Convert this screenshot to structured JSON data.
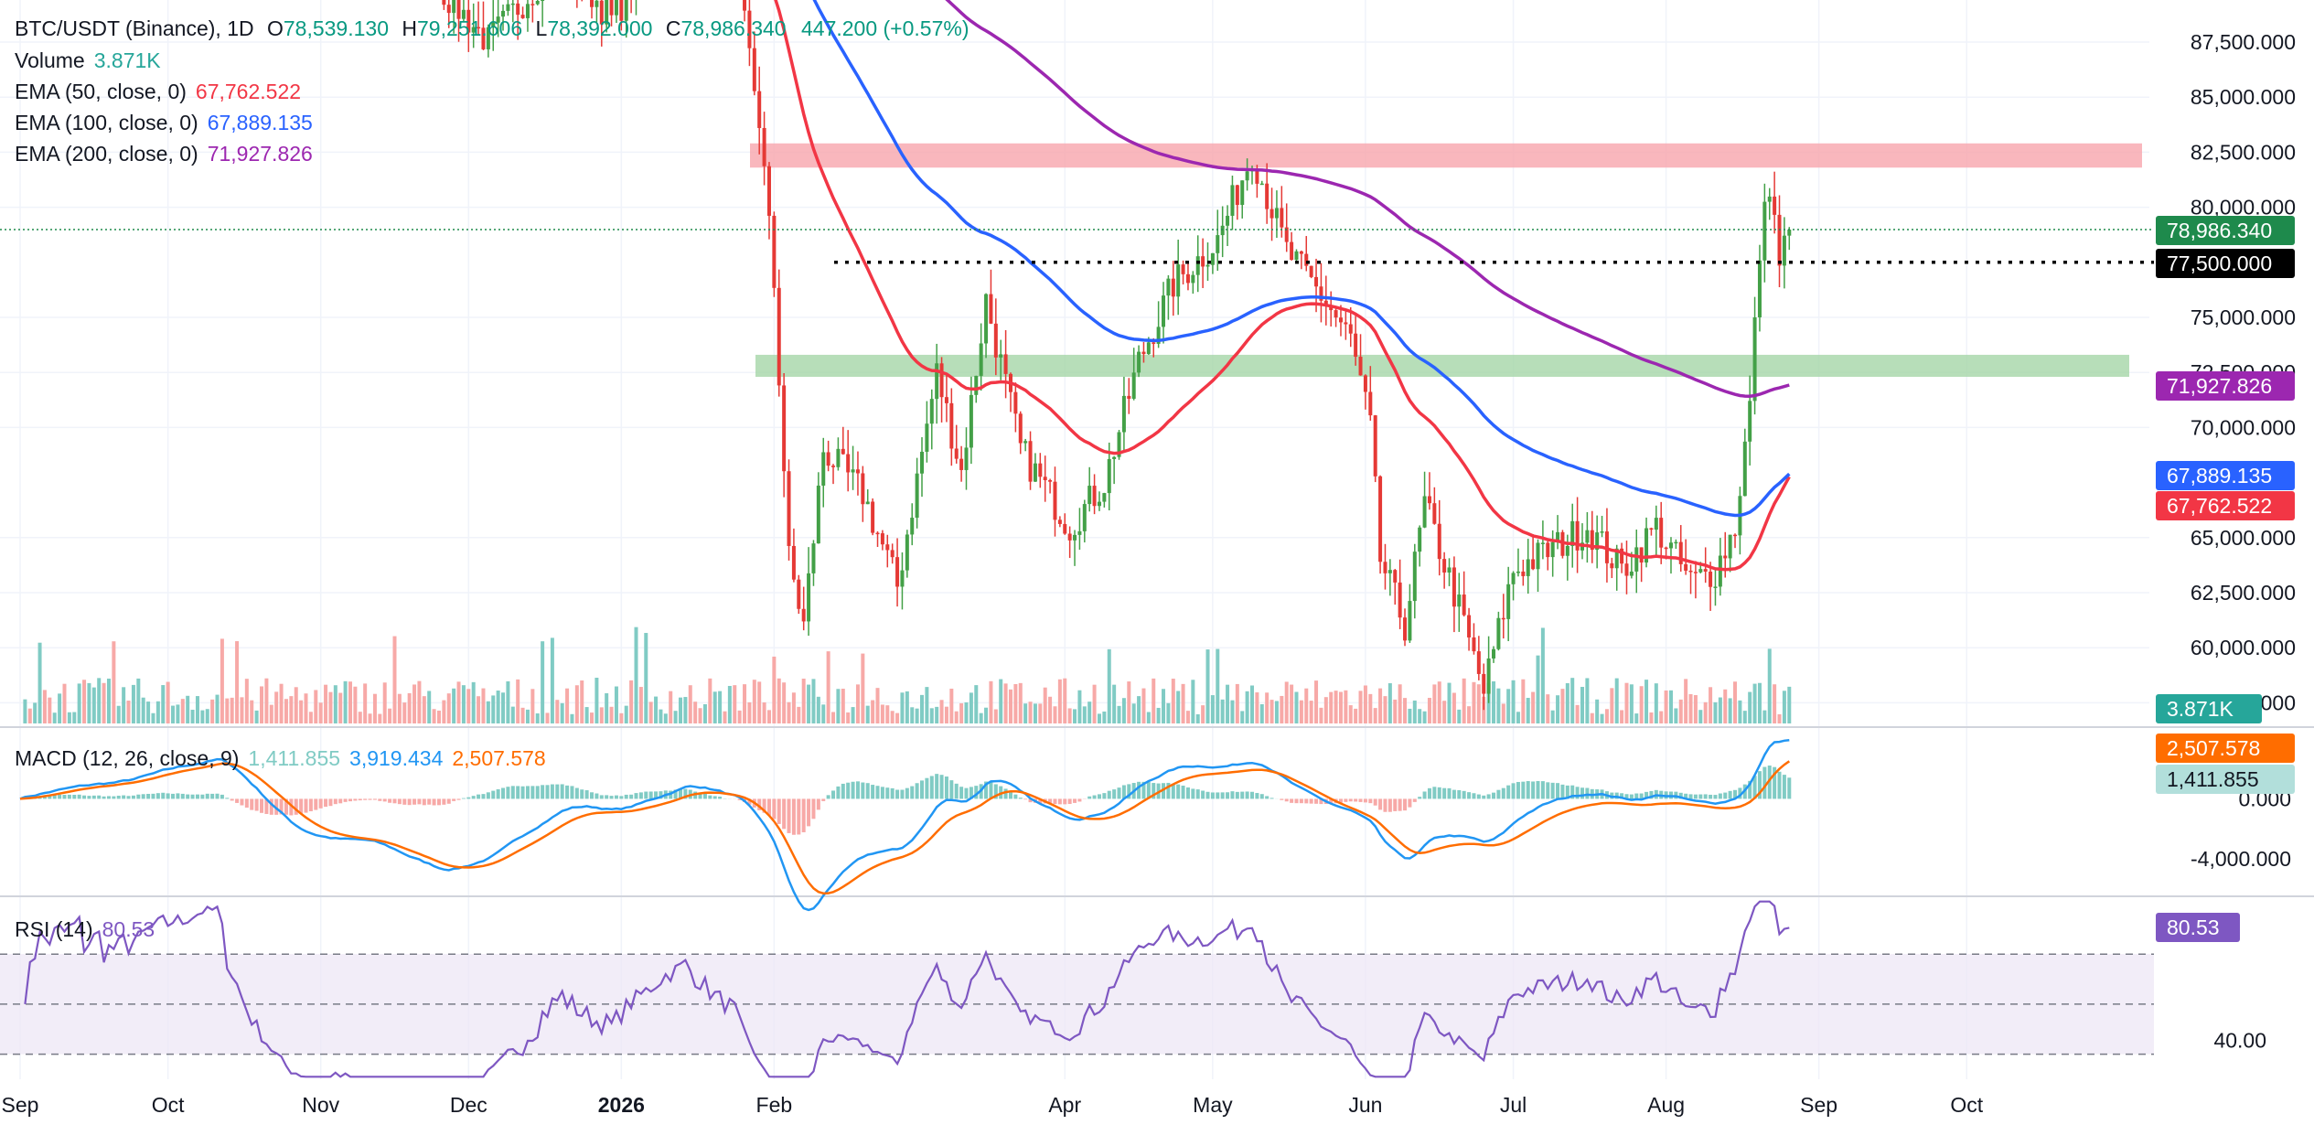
{
  "header": {
    "symbol": "BTC/USDT (Binance), 1D",
    "o_label": "O",
    "o_value": "78,539.130",
    "h_label": "H",
    "h_value": "79,251.606",
    "l_label": "L",
    "l_value": "78,392.000",
    "c_label": "C",
    "c_value": "78,986.340",
    "change": "447.200 (+0.57%)"
  },
  "legend": {
    "volume": {
      "label": "Volume",
      "value": "3.871K"
    },
    "ema50": {
      "label": "EMA (50, close, 0)",
      "value": "67,762.522"
    },
    "ema100": {
      "label": "EMA (100, close, 0)",
      "value": "67,889.135"
    },
    "ema200": {
      "label": "EMA (200, close, 0)",
      "value": "71,927.826"
    },
    "macd": {
      "label": "MACD (12, 26, close, 9)",
      "hist": "1,411.855",
      "macd": "3,919.434",
      "signal": "2,507.578"
    },
    "rsi": {
      "label": "RSI (14)",
      "value": "80.53"
    }
  },
  "colors": {
    "up": "#26a69a",
    "down": "#ef5350",
    "candle_up": "#43a047",
    "candle_down": "#e53935",
    "ema50": "#f23645",
    "ema100": "#2962ff",
    "ema200": "#9c27b0",
    "macd": "#2196f3",
    "signal": "#ff6d00",
    "rsi": "#7e57c2",
    "resistance_zone": "#f8a5ad",
    "support_zone": "#a5d6a7"
  },
  "price_labels": {
    "last": "78,986.340",
    "level": "77,500.000",
    "ema200": "71,927.826",
    "ema100": "67,889.135",
    "ema50": "67,762.522",
    "volume": "3.871K",
    "signal": "2,507.578",
    "hist": "1,411.855",
    "rsi": "80.53"
  },
  "chart_data": [
    {
      "type": "candlestick",
      "title": "BTC/USDT (Binance), 1D",
      "x_labels": [
        "Sep",
        "Oct",
        "Nov",
        "Dec",
        "2026",
        "Feb",
        "Apr",
        "May",
        "Jun",
        "Jul",
        "Aug",
        "Sep",
        "Oct"
      ],
      "y_ticks": [
        "87,500.000",
        "85,000.000",
        "82,500.000",
        "80,000.000",
        "75,000.000",
        "72,500.000",
        "70,000.000",
        "65,000.000",
        "62,500.000",
        "60,000.000",
        "57,500.000"
      ],
      "y_tick_values": [
        87500,
        85000,
        82500,
        80000,
        75000,
        72500,
        70000,
        65000,
        62500,
        60000,
        57500
      ],
      "ylim": [
        56500,
        88800
      ],
      "horizontal_level": 77500,
      "resistance_zone": [
        81800,
        82900
      ],
      "support_zone": [
        72300,
        73300
      ],
      "last_close": 78986.34,
      "ema_50_last": 67762.522,
      "ema_100_last": 67889.135,
      "ema_200_last": 71927.826,
      "price_path_points": [
        [
          "Jan 28",
          84000
        ],
        [
          "Jan 31",
          76500
        ],
        [
          "Feb 3",
          64000
        ],
        [
          "Feb 6",
          61000
        ],
        [
          "Feb 10",
          69000
        ],
        [
          "Feb 18",
          67000
        ],
        [
          "Feb 25",
          62800
        ],
        [
          "Mar 5",
          72500
        ],
        [
          "Mar 10",
          68000
        ],
        [
          "Mar 15",
          75800
        ],
        [
          "Mar 22",
          69000
        ],
        [
          "Apr 1",
          65500
        ],
        [
          "Apr 8",
          67500
        ],
        [
          "Apr 15",
          73000
        ],
        [
          "Apr 22",
          76500
        ],
        [
          "May 1",
          78500
        ],
        [
          "May 8",
          82500
        ],
        [
          "May 15",
          78000
        ],
        [
          "May 22",
          76000
        ],
        [
          "May 28",
          74000
        ],
        [
          "Jun 1",
          70000
        ],
        [
          "Jun 3",
          64000
        ],
        [
          "Jun 8",
          61000
        ],
        [
          "Jun 12",
          66500
        ],
        [
          "Jun 18",
          62500
        ],
        [
          "Jun 24",
          58000
        ],
        [
          "Jun 30",
          63500
        ],
        [
          "Jul 8",
          64500
        ],
        [
          "Jul 15",
          65500
        ],
        [
          "Jul 22",
          63500
        ],
        [
          "Jul 29",
          65500
        ],
        [
          "Aug 5",
          63000
        ],
        [
          "Aug 10",
          63500
        ],
        [
          "Aug 14",
          65500
        ],
        [
          "Aug 17",
          71000
        ],
        [
          "Aug 19",
          78000
        ],
        [
          "Aug 21",
          81200
        ],
        [
          "Aug 23",
          77500
        ],
        [
          "Aug 25",
          78986
        ]
      ]
    },
    {
      "type": "line",
      "title": "MACD (12, 26, close, 9)",
      "y_ticks": [
        "0.000",
        "-4,000.000"
      ],
      "y_tick_values": [
        0,
        -4000
      ],
      "ylim": [
        -6500,
        4600
      ],
      "series": [
        {
          "name": "MACD",
          "last": 3919.434
        },
        {
          "name": "Signal",
          "last": 2507.578
        },
        {
          "name": "Histogram",
          "last": 1411.855
        }
      ]
    },
    {
      "type": "line",
      "title": "RSI (14)",
      "y_ticks": [
        "40.00"
      ],
      "y_tick_values": [
        40
      ],
      "bands": [
        30,
        50,
        70
      ],
      "ylim": [
        20,
        92
      ],
      "last": 80.53
    }
  ]
}
